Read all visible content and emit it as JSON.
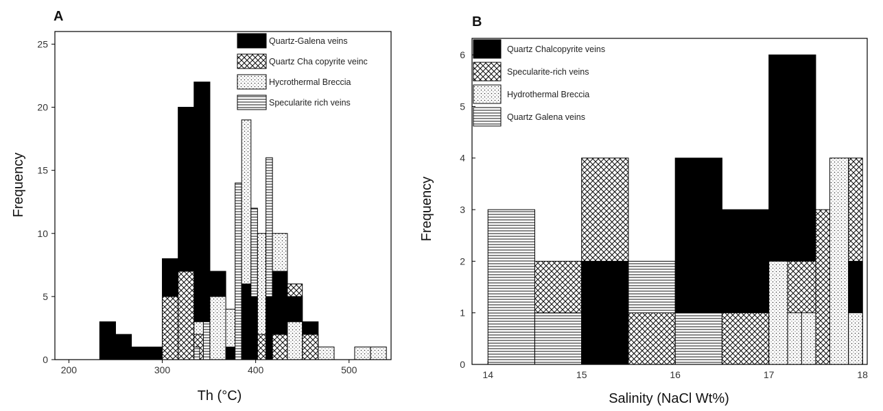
{
  "chart_data": [
    {
      "type": "bar",
      "panel_label": "A",
      "xlabel": "Th (°C)",
      "ylabel": "Frequency",
      "xlim": [
        185,
        545
      ],
      "ylim": [
        0,
        26
      ],
      "xticks": [
        200,
        300,
        400,
        500
      ],
      "yticks": [
        0,
        5,
        10,
        15,
        20,
        25
      ],
      "grid": false,
      "legend_position": "top-right",
      "legend": [
        {
          "label": "Quartz-Galena veins",
          "pattern": "solid"
        },
        {
          "label": "Quartz Cha copyrite veinc",
          "pattern": "cross"
        },
        {
          "label": "Hycrothermal Breccia",
          "pattern": "dots"
        },
        {
          "label": "Specularite rich veins",
          "pattern": "hlines"
        }
      ],
      "bars": [
        {
          "x0": 233,
          "x1": 250,
          "value": 3,
          "pattern": "solid"
        },
        {
          "x0": 250,
          "x1": 267,
          "value": 2,
          "pattern": "solid"
        },
        {
          "x0": 267,
          "x1": 284,
          "value": 1,
          "pattern": "solid"
        },
        {
          "x0": 284,
          "x1": 300,
          "value": 1,
          "pattern": "solid"
        },
        {
          "x0": 300,
          "x1": 317,
          "value": 8,
          "pattern": "solid"
        },
        {
          "x0": 300,
          "x1": 317,
          "value": 5,
          "pattern": "cross"
        },
        {
          "x0": 317,
          "x1": 334,
          "value": 20,
          "pattern": "solid"
        },
        {
          "x0": 317,
          "x1": 334,
          "value": 7,
          "pattern": "cross"
        },
        {
          "x0": 334,
          "x1": 351,
          "value": 22,
          "pattern": "solid"
        },
        {
          "x0": 334,
          "x1": 344,
          "value": 3,
          "pattern": "dots"
        },
        {
          "x0": 334,
          "x1": 344,
          "value": 2,
          "pattern": "cross"
        },
        {
          "x0": 334,
          "x1": 340,
          "value": 1,
          "pattern": "hlines"
        },
        {
          "x0": 344,
          "x1": 351,
          "value": 3,
          "pattern": "hlines"
        },
        {
          "x0": 351,
          "x1": 368,
          "value": 7,
          "pattern": "solid"
        },
        {
          "x0": 351,
          "x1": 368,
          "value": 5,
          "pattern": "dots"
        },
        {
          "x0": 368,
          "x1": 385,
          "value": 4,
          "pattern": "dots"
        },
        {
          "x0": 368,
          "x1": 378,
          "value": 1,
          "pattern": "solid"
        },
        {
          "x0": 378,
          "x1": 385,
          "value": 14,
          "pattern": "hlines"
        },
        {
          "x0": 385,
          "x1": 395,
          "value": 19,
          "pattern": "dots"
        },
        {
          "x0": 385,
          "x1": 395,
          "value": 6,
          "pattern": "solid"
        },
        {
          "x0": 395,
          "x1": 402,
          "value": 12,
          "pattern": "hlines"
        },
        {
          "x0": 395,
          "x1": 402,
          "value": 5,
          "pattern": "solid"
        },
        {
          "x0": 402,
          "x1": 411,
          "value": 10,
          "pattern": "dots"
        },
        {
          "x0": 402,
          "x1": 411,
          "value": 2,
          "pattern": "cross"
        },
        {
          "x0": 411,
          "x1": 418,
          "value": 16,
          "pattern": "hlines"
        },
        {
          "x0": 411,
          "x1": 418,
          "value": 5,
          "pattern": "solid"
        },
        {
          "x0": 418,
          "x1": 434,
          "value": 10,
          "pattern": "dots"
        },
        {
          "x0": 418,
          "x1": 434,
          "value": 7,
          "pattern": "solid"
        },
        {
          "x0": 418,
          "x1": 434,
          "value": 2,
          "pattern": "cross"
        },
        {
          "x0": 434,
          "x1": 450,
          "value": 6,
          "pattern": "cross"
        },
        {
          "x0": 434,
          "x1": 450,
          "value": 5,
          "pattern": "solid"
        },
        {
          "x0": 434,
          "x1": 450,
          "value": 3,
          "pattern": "dots"
        },
        {
          "x0": 450,
          "x1": 467,
          "value": 3,
          "pattern": "solid"
        },
        {
          "x0": 450,
          "x1": 467,
          "value": 2,
          "pattern": "cross"
        },
        {
          "x0": 467,
          "x1": 484,
          "value": 1,
          "pattern": "dots"
        },
        {
          "x0": 506,
          "x1": 523,
          "value": 1,
          "pattern": "dots"
        },
        {
          "x0": 523,
          "x1": 540,
          "value": 1,
          "pattern": "dots"
        }
      ]
    },
    {
      "type": "bar",
      "panel_label": "B",
      "xlabel": "Salinity (NaCl Wt%)",
      "ylabel": "Frequency",
      "xlim": [
        13.83,
        18.05
      ],
      "ylim": [
        0,
        6.32
      ],
      "xticks": [
        14,
        15,
        16,
        17,
        18
      ],
      "xtick_labels": [
        "14",
        "15",
        "16",
        "17",
        "18"
      ],
      "yticks": [
        0,
        1,
        2,
        3,
        4,
        5,
        6
      ],
      "ytick_labels": [
        "0",
        "1",
        "2",
        "3",
        "4",
        "5",
        "6"
      ],
      "grid": false,
      "legend_position": "top-left",
      "legend": [
        {
          "label": "Quartz Chalcopyrite veins",
          "pattern": "solid"
        },
        {
          "label": "Specularite-rich veins",
          "pattern": "cross"
        },
        {
          "label": "Hydrothermal Breccia",
          "pattern": "dots"
        },
        {
          "label": "Quartz Galena veins",
          "pattern": "hlines"
        }
      ],
      "bars": [
        {
          "x0": 14.0,
          "x1": 14.5,
          "value": 3,
          "pattern": "hlines"
        },
        {
          "x0": 14.5,
          "x1": 15.0,
          "value": 2,
          "pattern": "cross"
        },
        {
          "x0": 14.5,
          "x1": 15.0,
          "value": 1,
          "pattern": "hlines"
        },
        {
          "x0": 15.0,
          "x1": 15.5,
          "value": 4,
          "pattern": "cross"
        },
        {
          "x0": 15.0,
          "x1": 15.5,
          "value": 2,
          "pattern": "solid"
        },
        {
          "x0": 15.5,
          "x1": 16.0,
          "value": 2,
          "pattern": "hlines"
        },
        {
          "x0": 15.5,
          "x1": 16.0,
          "value": 1,
          "pattern": "cross"
        },
        {
          "x0": 16.0,
          "x1": 16.5,
          "value": 4,
          "pattern": "solid"
        },
        {
          "x0": 16.0,
          "x1": 16.5,
          "value": 1,
          "pattern": "hlines"
        },
        {
          "x0": 16.5,
          "x1": 17.0,
          "value": 3,
          "pattern": "solid"
        },
        {
          "x0": 16.5,
          "x1": 17.0,
          "value": 1,
          "pattern": "cross"
        },
        {
          "x0": 17.0,
          "x1": 17.5,
          "value": 6,
          "pattern": "solid"
        },
        {
          "x0": 17.0,
          "x1": 17.2,
          "value": 2,
          "pattern": "dots"
        },
        {
          "x0": 17.2,
          "x1": 17.5,
          "value": 2,
          "pattern": "cross"
        },
        {
          "x0": 17.2,
          "x1": 17.35,
          "value": 1,
          "pattern": "dots"
        },
        {
          "x0": 17.35,
          "x1": 17.5,
          "value": 1,
          "pattern": "dots"
        },
        {
          "x0": 17.5,
          "x1": 17.65,
          "value": 3,
          "pattern": "cross"
        },
        {
          "x0": 17.65,
          "x1": 17.85,
          "value": 4,
          "pattern": "dots"
        },
        {
          "x0": 17.85,
          "x1": 18.0,
          "value": 4,
          "pattern": "cross"
        },
        {
          "x0": 17.85,
          "x1": 18.0,
          "value": 2,
          "pattern": "solid"
        },
        {
          "x0": 17.85,
          "x1": 18.0,
          "value": 1,
          "pattern": "dots"
        }
      ]
    }
  ]
}
